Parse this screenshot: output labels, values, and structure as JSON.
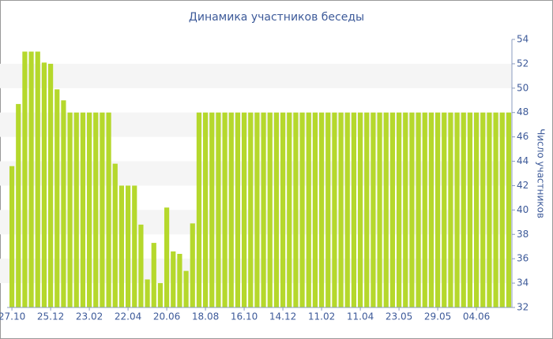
{
  "chart_data": {
    "type": "bar",
    "title": "Динамика участников беседы",
    "y_axis_label": "Число участников",
    "y_axis_side": "right",
    "categories": [
      "27.10",
      null,
      null,
      null,
      null,
      null,
      "25.12",
      null,
      null,
      null,
      null,
      null,
      "23.02",
      null,
      null,
      null,
      null,
      null,
      "22.04",
      null,
      null,
      null,
      null,
      null,
      "20.06",
      null,
      null,
      null,
      null,
      null,
      "18.08",
      null,
      null,
      null,
      null,
      null,
      "16.10",
      null,
      null,
      null,
      null,
      null,
      "14.12",
      null,
      null,
      null,
      null,
      null,
      "11.02",
      null,
      null,
      null,
      null,
      null,
      "11.04",
      null,
      null,
      null,
      null,
      null,
      "23.05",
      null,
      null,
      null,
      null,
      null,
      "29.05",
      null,
      null,
      null,
      null,
      null,
      "04.06",
      null,
      null,
      null,
      null,
      null
    ],
    "values": [
      43.6,
      48.7,
      53,
      53,
      53,
      52.1,
      52,
      49.9,
      49,
      48,
      48,
      48,
      48,
      48,
      48,
      48,
      43.8,
      42,
      42,
      42,
      38.8,
      34.3,
      37.3,
      34,
      40.2,
      36.6,
      36.4,
      35,
      38.9,
      48,
      48,
      48,
      48,
      48,
      48,
      48,
      48,
      48,
      48,
      48,
      48,
      48,
      48,
      48,
      48,
      48,
      48,
      48,
      48,
      48,
      48,
      48,
      48,
      48,
      48,
      48,
      48,
      48,
      48,
      48,
      48,
      48,
      48,
      48,
      48,
      48,
      48,
      48,
      48,
      48,
      48,
      48,
      48,
      48,
      48,
      48,
      48,
      48
    ],
    "color": "#b5d82c",
    "ylim": [
      32,
      54
    ],
    "yticks": [
      32,
      34,
      36,
      38,
      40,
      42,
      44,
      46,
      48,
      50,
      52,
      54
    ],
    "grid_bands": true
  }
}
